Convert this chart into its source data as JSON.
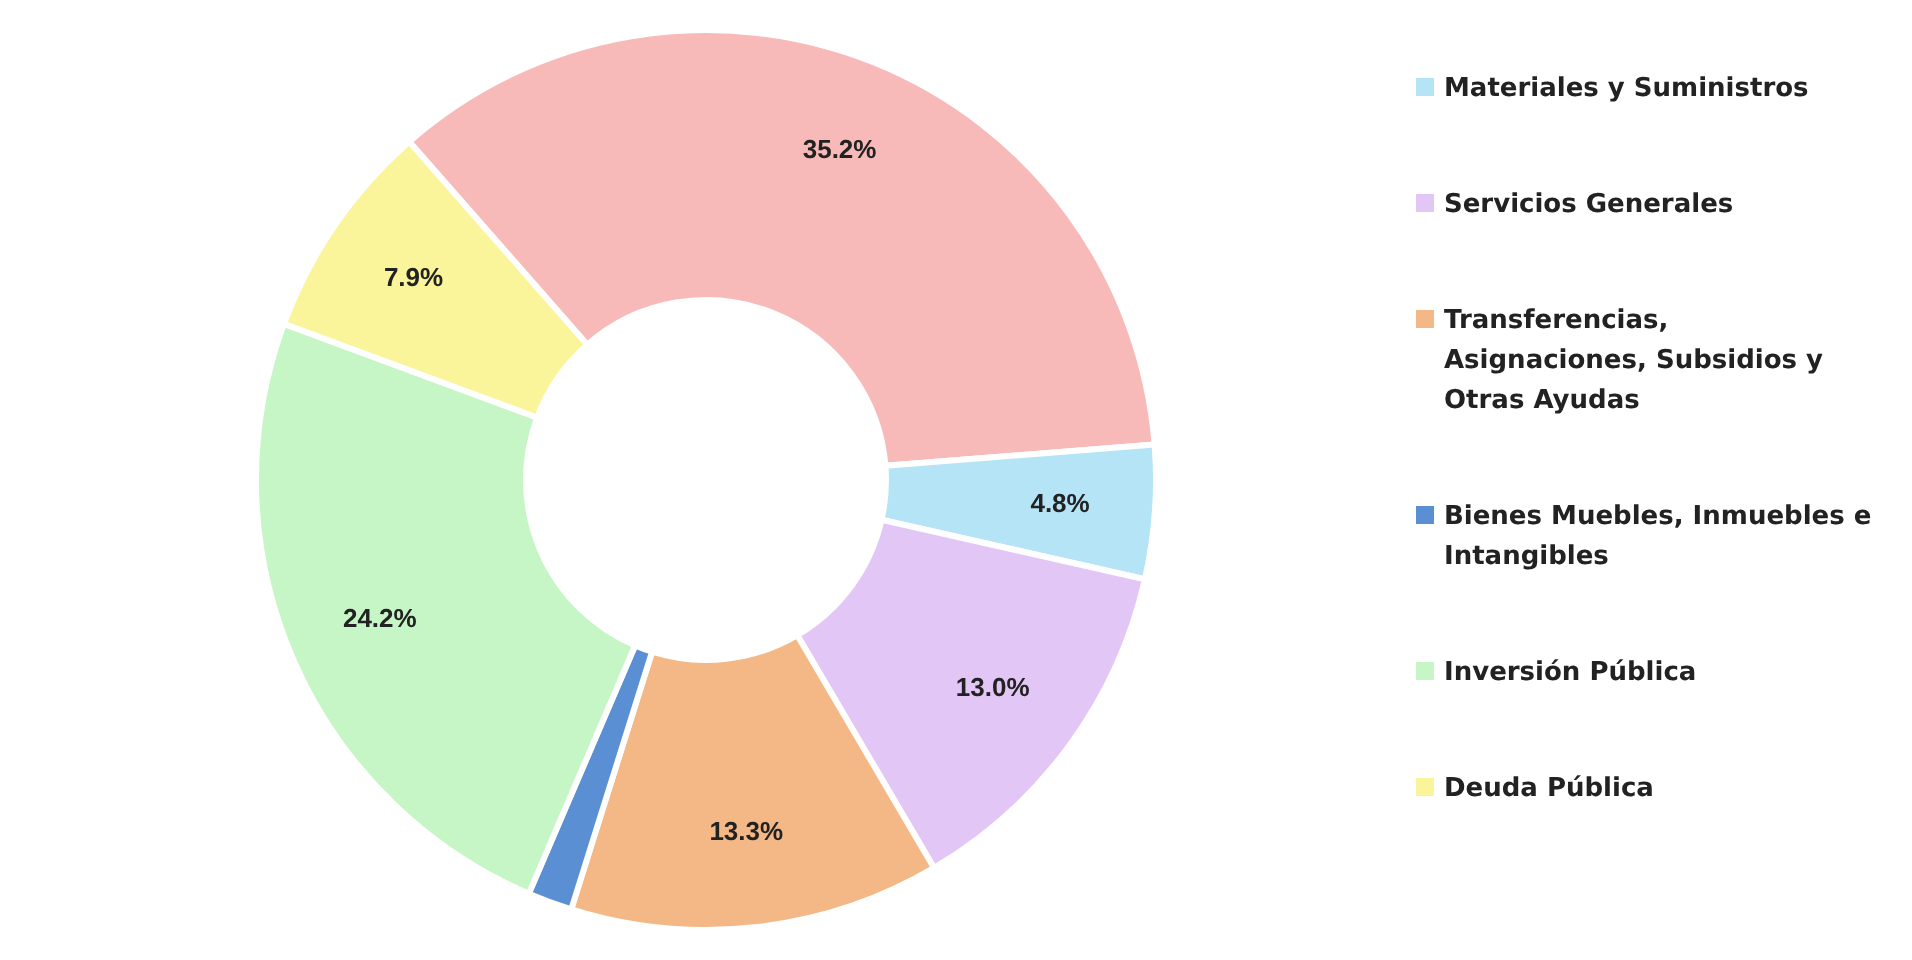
{
  "chart_data": {
    "type": "donut",
    "categories": [
      null,
      "Materiales y Suministros",
      "Servicios Generales",
      "Transferencias, Asignaciones, Subsidios y Otras Ayudas",
      "Bienes Muebles, Inmuebles e Intangibles",
      "Inversión Pública",
      "Deuda Pública"
    ],
    "values": [
      35.2,
      4.8,
      13.0,
      13.3,
      1.6,
      24.2,
      7.9
    ],
    "value_labels": [
      "35.2%",
      "4.8%",
      "13.0%",
      "13.3%",
      null,
      "24.2%",
      "7.9%"
    ],
    "colors": [
      "#f8b9b9",
      "#b5e4f6",
      "#e2c6f6",
      "#f4b887",
      "#5b8fd4",
      "#c6f5c6",
      "#faf59a"
    ],
    "legend": "right"
  }
}
